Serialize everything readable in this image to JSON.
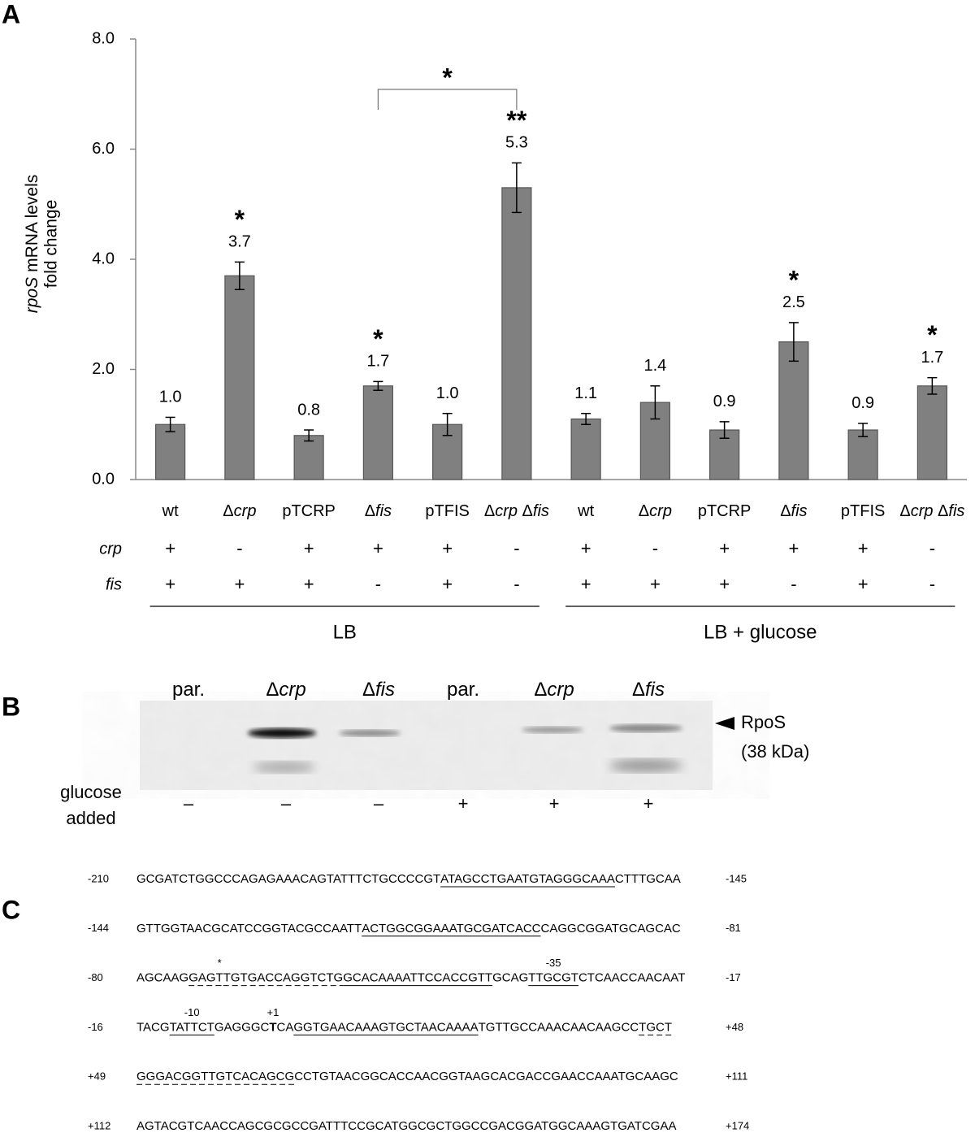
{
  "chart_data": {
    "type": "bar",
    "panel_label": "A",
    "ylabel_gene": "rpoS",
    "ylabel": [
      "mRNA levels",
      "fold change"
    ],
    "categories": [
      "wt",
      "Δcrp",
      "pTCRP",
      "Δfis",
      "pTFIS",
      "Δcrp Δfis",
      "wt",
      "Δcrp",
      "pTCRP",
      "Δfis",
      "pTFIS",
      "Δcrp Δfis"
    ],
    "values": [
      1.0,
      3.7,
      0.8,
      1.7,
      1.0,
      5.3,
      1.1,
      1.4,
      0.9,
      2.5,
      0.9,
      1.7
    ],
    "value_labels": [
      "1.0",
      "3.7",
      "0.8",
      "1.7",
      "1.0",
      "5.3",
      "1.1",
      "1.4",
      "0.9",
      "2.5",
      "0.9",
      "1.7"
    ],
    "errors": [
      0.13,
      0.25,
      0.1,
      0.08,
      0.2,
      0.45,
      0.1,
      0.3,
      0.15,
      0.35,
      0.12,
      0.15
    ],
    "significance": [
      null,
      "*",
      null,
      "*",
      null,
      "**",
      null,
      null,
      null,
      "*",
      null,
      "*"
    ],
    "bracket_label": "*",
    "color": "#808080",
    "ylim": [
      0,
      8
    ],
    "yticks": [
      {
        "value": 0,
        "label": "0.0"
      },
      {
        "value": 2,
        "label": "2.0"
      },
      {
        "value": 4,
        "label": "4.0"
      },
      {
        "value": 6,
        "label": "6.0"
      },
      {
        "value": 8,
        "label": "8.0"
      }
    ],
    "genotype": [
      {
        "name": "crp",
        "values": [
          "+",
          "-",
          "+",
          "+",
          "+",
          "-",
          "+",
          "-",
          "+",
          "+",
          "+",
          "-"
        ]
      },
      {
        "name": "fis",
        "values": [
          "+",
          "+",
          "+",
          "-",
          "+",
          "-",
          "+",
          "+",
          "+",
          "-",
          "+",
          "-"
        ]
      }
    ],
    "groups": [
      "LB",
      "LB + glucose"
    ]
  },
  "blot": {
    "panel_label": "B",
    "lanes": [
      "par.",
      "Δcrp",
      "Δfis",
      "par.",
      "Δcrp",
      "Δfis"
    ],
    "glucose_label": [
      "glucose",
      "added"
    ],
    "glucose": [
      "–",
      "–",
      "–",
      "+",
      "+",
      "+"
    ],
    "band_label": [
      "RpoS",
      "(38 kDa)"
    ]
  },
  "sequence": {
    "panel_label": "C",
    "lines": [
      {
        "start": "-210",
        "end": "-145",
        "segments": [
          {
            "text": "GCGATCTGGCCCAGAGAAACAGTATTTCTGCCCCGT"
          },
          {
            "text": "ATAGCCTGAATGTAGGGCAAA",
            "style": "underline"
          },
          {
            "text": "CTTTGCAA"
          }
        ]
      },
      {
        "start": "-144",
        "end": "-81",
        "segments": [
          {
            "text": "GTTGGTAACGCATCCGGTACGCCAATT"
          },
          {
            "text": "ACTGGCGGAAATGCGATCACC",
            "style": "underline"
          },
          {
            "text": "CAGGCGGATGCAGCAC"
          }
        ]
      },
      {
        "start": "-80",
        "end": "-17",
        "segments": [
          {
            "text": "AGCAAG"
          },
          {
            "text": "GAG",
            "style": "dashed"
          },
          {
            "text": "T",
            "style": "dashed",
            "above": "*"
          },
          {
            "text": "TGTGACCAGGTCTG",
            "style": "dashed"
          },
          {
            "text": "GCACAAAATTCCACCGTT",
            "style": "underline"
          },
          {
            "text": "GCAG"
          },
          {
            "text": "TTGCGT",
            "style": "underline",
            "above": "-35"
          },
          {
            "text": "CTCAACCAACAAT"
          }
        ]
      },
      {
        "start": "-16",
        "end": "+48",
        "segments": [
          {
            "text": "TACG"
          },
          {
            "text": "TATTCT",
            "style": "underline",
            "above": "-10"
          },
          {
            "text": "GAGGGC"
          },
          {
            "text": "T",
            "style": "bold",
            "above": "+1"
          },
          {
            "text": "CA"
          },
          {
            "text": "GGTGAACAAAGTGCTAACAAAA",
            "style": "underline"
          },
          {
            "text": "TGTTGCCAAACAACAAGCC"
          },
          {
            "text": "TGCT",
            "style": "dashed"
          }
        ]
      },
      {
        "start": "+49",
        "end": "+111",
        "segments": [
          {
            "text": "GGGACGGTTGTCACAGCG",
            "style": "dashed"
          },
          {
            "text": "CCTGTAACGGCACCAACGGTAAGCACGACCGAACCAAATGCAAGC"
          }
        ]
      },
      {
        "start": "+112",
        "end": "+174",
        "segments": [
          {
            "text": "AGTACGTCAACCAGCGCGCCGATTTCCGCATGGCGCTGGCCGACGGATGGCAAAGTGATCGAA"
          }
        ]
      }
    ]
  }
}
